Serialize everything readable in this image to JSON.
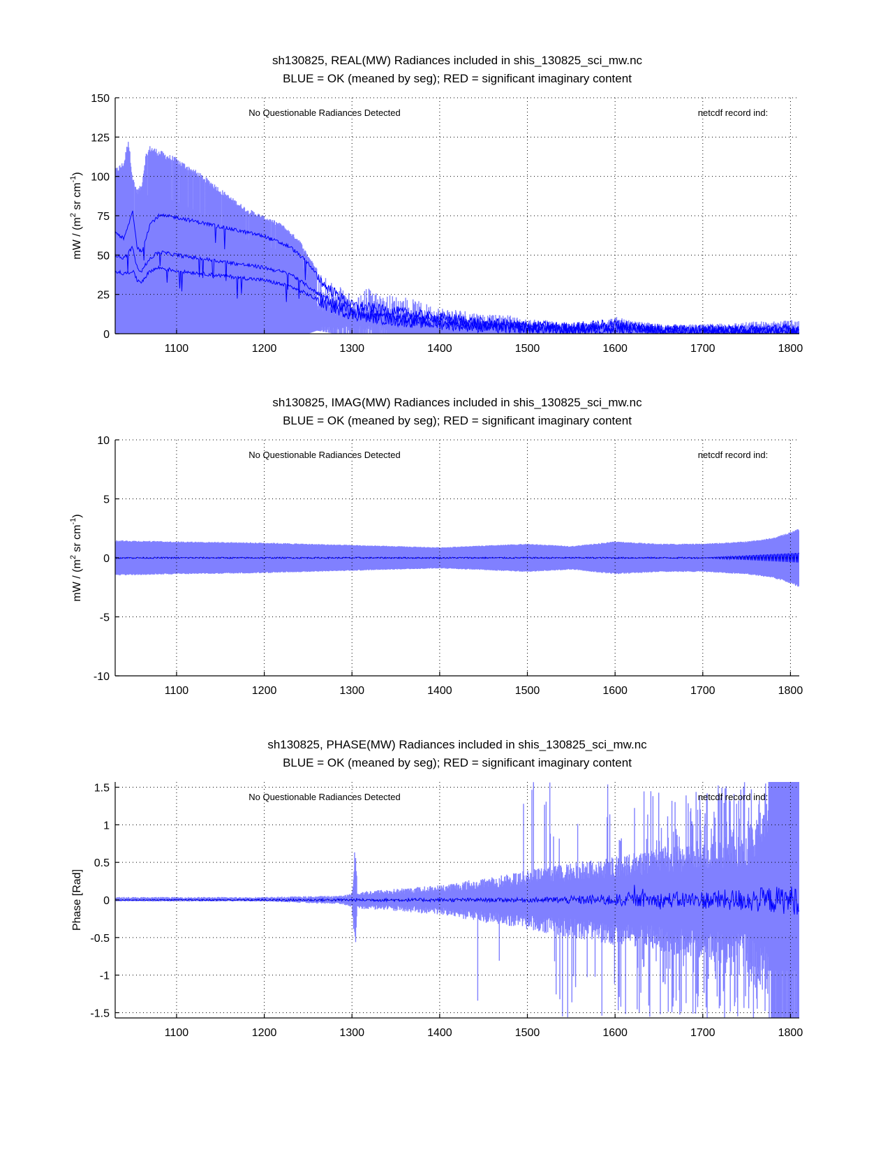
{
  "colors": {
    "envelope": "#8080ff",
    "mean": "#0000ff",
    "axis": "#000000"
  },
  "chart_data": [
    {
      "type": "area",
      "id": "real",
      "title_line1": "sh130825, REAL(MW) Radiances included in shis_130825_sci_mw.nc",
      "title_line2": "BLUE = OK (meaned by seg); RED = significant imaginary content",
      "xlabel": "",
      "ylabel": "mW / (m² sr cm⁻¹)",
      "ylabel_parts": {
        "base": "mW / (m",
        "sup1": "2",
        "mid": " sr cm",
        "sup2": "-1",
        "end": ")"
      },
      "xlim": [
        1030,
        1810
      ],
      "ylim": [
        0,
        150
      ],
      "xticks": [
        1100,
        1200,
        1300,
        1400,
        1500,
        1600,
        1700,
        1800
      ],
      "yticks": [
        0,
        25,
        50,
        75,
        100,
        125,
        150
      ],
      "ytick_labels": [
        "0",
        "25",
        "50",
        "75",
        "100",
        "125",
        "150"
      ],
      "grid": true,
      "annotations": {
        "left": "No Questionable Radiances Detected",
        "right": "netcdf record ind:"
      },
      "envelope_max": {
        "x": [
          1030,
          1040,
          1045,
          1050,
          1055,
          1060,
          1065,
          1070,
          1080,
          1100,
          1120,
          1140,
          1160,
          1180,
          1200,
          1220,
          1240,
          1250,
          1260,
          1270,
          1280,
          1300,
          1320,
          1340,
          1360,
          1380,
          1400,
          1420,
          1440,
          1460,
          1480,
          1500,
          1520,
          1540,
          1560,
          1580,
          1600,
          1620,
          1640,
          1660,
          1680,
          1700,
          1720,
          1740,
          1760,
          1780,
          1800,
          1810
        ],
        "y": [
          105,
          110,
          125,
          100,
          92,
          95,
          115,
          120,
          117,
          112,
          105,
          97,
          88,
          80,
          75,
          70,
          60,
          50,
          42,
          38,
          32,
          25,
          30,
          25,
          24,
          20,
          17,
          16,
          14,
          12,
          12,
          9,
          9,
          7,
          7,
          8,
          11,
          8,
          7,
          6,
          6,
          6,
          7,
          7,
          8,
          8,
          9,
          8
        ]
      },
      "envelope_min": {
        "x": [
          1030,
          1200,
          1250,
          1260,
          1280,
          1300,
          1340,
          1400,
          1500,
          1600,
          1810
        ],
        "y": [
          0,
          0,
          0,
          2,
          0,
          0,
          0,
          0,
          0,
          0,
          0
        ]
      },
      "series": [
        {
          "name": "mean-upper",
          "x": [
            1030,
            1040,
            1050,
            1055,
            1060,
            1070,
            1080,
            1100,
            1150,
            1200,
            1230,
            1250,
            1270,
            1300,
            1350,
            1400,
            1450,
            1500,
            1550,
            1600,
            1650,
            1700,
            1750,
            1810
          ],
          "y": [
            65,
            60,
            78,
            55,
            52,
            70,
            75,
            74,
            68,
            62,
            55,
            45,
            30,
            18,
            14,
            10,
            7,
            5,
            4,
            6,
            3,
            2,
            2,
            3
          ]
        },
        {
          "name": "mean-middle",
          "x": [
            1030,
            1040,
            1050,
            1055,
            1060,
            1070,
            1080,
            1100,
            1150,
            1200,
            1230,
            1250,
            1270,
            1300,
            1350,
            1400,
            1450,
            1500,
            1550,
            1600,
            1650,
            1700,
            1750,
            1810
          ],
          "y": [
            50,
            48,
            55,
            42,
            40,
            48,
            52,
            50,
            46,
            42,
            38,
            30,
            22,
            14,
            10,
            8,
            5,
            4,
            3,
            4,
            2,
            2,
            2,
            2
          ]
        },
        {
          "name": "mean-lower",
          "x": [
            1030,
            1040,
            1050,
            1055,
            1060,
            1070,
            1080,
            1100,
            1150,
            1200,
            1230,
            1250,
            1270,
            1300,
            1350,
            1400,
            1450,
            1500,
            1550,
            1600,
            1650,
            1700,
            1750,
            1810
          ],
          "y": [
            40,
            38,
            40,
            34,
            33,
            40,
            42,
            40,
            37,
            34,
            30,
            25,
            18,
            12,
            8,
            6,
            4,
            3,
            2,
            3,
            2,
            1,
            1,
            1
          ]
        }
      ]
    },
    {
      "type": "area",
      "id": "imag",
      "title_line1": "sh130825, IMAG(MW) Radiances included in shis_130825_sci_mw.nc",
      "title_line2": "BLUE = OK (meaned by seg); RED = significant imaginary content",
      "xlabel": "",
      "ylabel": "mW / (m² sr cm⁻¹)",
      "ylabel_parts": {
        "base": "mW / (m",
        "sup1": "2",
        "mid": " sr cm",
        "sup2": "-1",
        "end": ")"
      },
      "xlim": [
        1030,
        1810
      ],
      "ylim": [
        -10,
        10
      ],
      "xticks": [
        1100,
        1200,
        1300,
        1400,
        1500,
        1600,
        1700,
        1800
      ],
      "yticks": [
        -10,
        -5,
        0,
        5,
        10
      ],
      "ytick_labels": [
        "-10",
        "-5",
        "0",
        "5",
        "10"
      ],
      "grid": true,
      "annotations": {
        "left": "No Questionable Radiances Detected",
        "right": "netcdf record ind:"
      },
      "envelope_max": {
        "x": [
          1030,
          1100,
          1200,
          1300,
          1400,
          1500,
          1550,
          1600,
          1650,
          1700,
          1750,
          1780,
          1800,
          1810
        ],
        "y": [
          1.5,
          1.4,
          1.3,
          1.1,
          0.9,
          1.2,
          1.0,
          1.4,
          1.2,
          1.2,
          1.4,
          1.7,
          2.2,
          2.5
        ]
      },
      "envelope_min": {
        "x": [
          1030,
          1100,
          1200,
          1300,
          1400,
          1500,
          1550,
          1600,
          1650,
          1700,
          1750,
          1780,
          1800,
          1810
        ],
        "y": [
          -1.5,
          -1.4,
          -1.3,
          -1.1,
          -0.9,
          -1.2,
          -1.0,
          -1.4,
          -1.2,
          -1.2,
          -1.4,
          -1.7,
          -2.2,
          -2.5
        ]
      },
      "series": [
        {
          "name": "mean",
          "x": [
            1030,
            1700,
            1810
          ],
          "y": [
            0,
            0,
            0
          ],
          "band_at_end": 0.4
        }
      ]
    },
    {
      "type": "area",
      "id": "phase",
      "title_line1": "sh130825, PHASE(MW) Radiances included in shis_130825_sci_mw.nc",
      "title_line2": "BLUE = OK (meaned by seg); RED = significant imaginary content",
      "xlabel": "",
      "ylabel": "Phase [Rad]",
      "xlim": [
        1030,
        1810
      ],
      "ylim": [
        -1.57,
        1.57
      ],
      "xticks": [
        1100,
        1200,
        1300,
        1400,
        1500,
        1600,
        1700,
        1800
      ],
      "yticks": [
        -1.5,
        -1,
        -0.5,
        0,
        0.5,
        1,
        1.5
      ],
      "ytick_labels": [
        "-1.5",
        "-1",
        "-0.5",
        "0",
        "0.5",
        "1",
        "1.5"
      ],
      "grid": true,
      "annotations": {
        "left": "No Questionable Radiances Detected",
        "right": "netcdf record ind:"
      },
      "envelope_max": {
        "x": [
          1030,
          1200,
          1290,
          1300,
          1304,
          1306,
          1310,
          1350,
          1400,
          1450,
          1480,
          1500,
          1550,
          1600,
          1650,
          1700,
          1750,
          1790,
          1810
        ],
        "y": [
          0.04,
          0.04,
          0.06,
          0.1,
          0.85,
          0.1,
          0.12,
          0.15,
          0.2,
          0.3,
          0.35,
          0.4,
          0.5,
          0.6,
          0.7,
          0.8,
          0.9,
          1.57,
          1.57
        ]
      },
      "envelope_min": {
        "x": [
          1030,
          1200,
          1290,
          1300,
          1304,
          1306,
          1310,
          1350,
          1400,
          1450,
          1480,
          1500,
          1550,
          1600,
          1650,
          1700,
          1750,
          1790,
          1810
        ],
        "y": [
          -0.02,
          -0.02,
          -0.06,
          -0.1,
          -0.85,
          -0.1,
          -0.12,
          -0.15,
          -0.2,
          -0.3,
          -0.35,
          -0.4,
          -0.5,
          -0.6,
          -0.7,
          -0.8,
          -0.9,
          -1.57,
          -1.57
        ]
      },
      "spikes": {
        "x_start": 1440,
        "x_end": 1810,
        "density": "increasing",
        "max_abs": 1.57
      },
      "series": [
        {
          "name": "mean",
          "x": [
            1030,
            1500,
            1600,
            1700,
            1810
          ],
          "y": [
            0,
            0,
            0,
            0,
            0
          ],
          "noise_amp": [
            0.005,
            0.03,
            0.08,
            0.12,
            0.2
          ]
        }
      ]
    }
  ]
}
